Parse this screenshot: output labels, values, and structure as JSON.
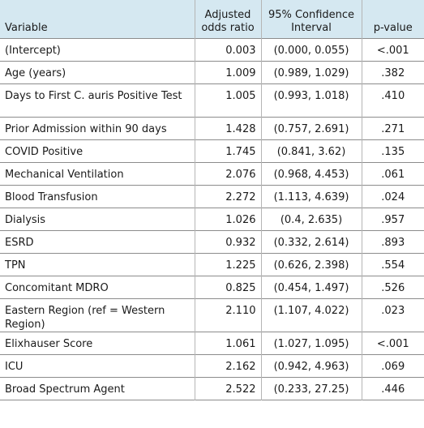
{
  "table": {
    "headers": {
      "variable": "Variable",
      "odds_ratio": "Adjusted odds ratio",
      "ci": "95% Confidence Interval",
      "pvalue": "p-value"
    },
    "rows": [
      {
        "variable": "(Intercept)",
        "or": "0.003",
        "ci": "(0.000, 0.055)",
        "p": "<.001"
      },
      {
        "variable": "Age (years)",
        "or": "1.009",
        "ci": "(0.989, 1.029)",
        "p": ".382"
      },
      {
        "variable": "Days to First C. auris Positive Test",
        "or": "1.005",
        "ci": "(0.993, 1.018)",
        "p": ".410"
      },
      {
        "variable": "Prior Admission within 90 days",
        "or": "1.428",
        "ci": "(0.757, 2.691)",
        "p": ".271"
      },
      {
        "variable": "COVID Positive",
        "or": "1.745",
        "ci": "(0.841, 3.62)",
        "p": ".135"
      },
      {
        "variable": "Mechanical Ventilation",
        "or": "2.076",
        "ci": "(0.968, 4.453)",
        "p": ".061"
      },
      {
        "variable": "Blood Transfusion",
        "or": "2.272",
        "ci": "(1.113, 4.639)",
        "p": ".024"
      },
      {
        "variable": "Dialysis",
        "or": "1.026",
        "ci": "(0.4, 2.635)",
        "p": ".957"
      },
      {
        "variable": "ESRD",
        "or": "0.932",
        "ci": "(0.332, 2.614)",
        "p": ".893"
      },
      {
        "variable": "TPN",
        "or": "1.225",
        "ci": "(0.626, 2.398)",
        "p": ".554"
      },
      {
        "variable": "Concomitant MDRO",
        "or": "0.825",
        "ci": "(0.454, 1.497)",
        "p": ".526"
      },
      {
        "variable": "Eastern Region (ref = Western Region)",
        "or": "2.110",
        "ci": "(1.107, 4.022)",
        "p": ".023"
      },
      {
        "variable": "Elixhauser Score",
        "or": "1.061",
        "ci": "(1.027, 1.095)",
        "p": "<.001"
      },
      {
        "variable": "ICU",
        "or": "2.162",
        "ci": "(0.942, 4.963)",
        "p": ".069"
      },
      {
        "variable": "Broad Spectrum Agent",
        "or": "2.522",
        "ci": "(0.233, 27.25)",
        "p": ".446"
      }
    ]
  }
}
